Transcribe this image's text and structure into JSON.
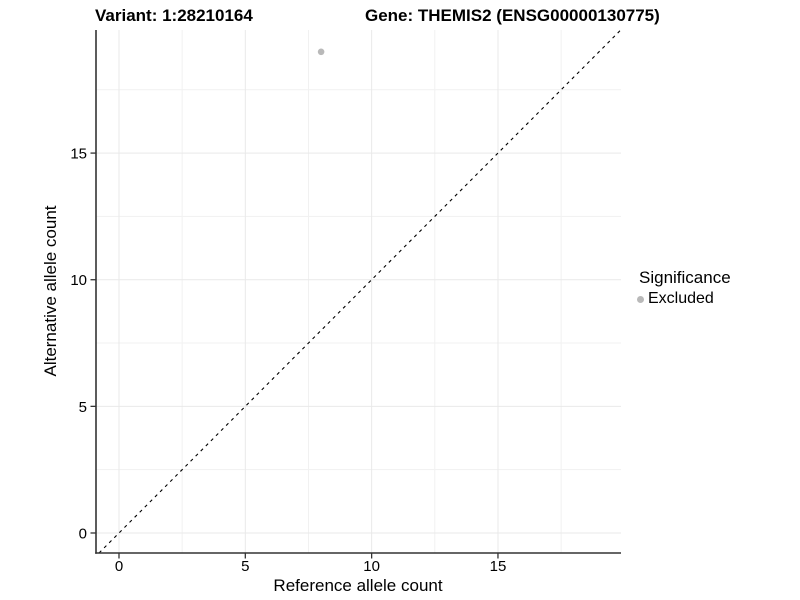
{
  "chart_data": {
    "type": "scatter",
    "title_left": "Variant: 1:28210164",
    "title_right": "Gene: THEMIS2 (ENSG00000130775)",
    "xlabel": "Reference allele count",
    "ylabel": "Alternative allele count",
    "xlim": [
      -0.91,
      19.87
    ],
    "ylim": [
      -0.79,
      19.86
    ],
    "xticks": [
      0,
      5,
      10,
      15
    ],
    "yticks": [
      0,
      5,
      10,
      15
    ],
    "xticks_minor": [
      2.5,
      7.5,
      12.5,
      17.5
    ],
    "yticks_minor": [
      2.5,
      7.5,
      12.5,
      17.5
    ],
    "grid": "major+minor",
    "identity_line": {
      "style": "dashed",
      "slope": 1,
      "intercept": 0,
      "color": "#000000"
    },
    "series": [
      {
        "name": "Excluded",
        "color": "#b9b9b9",
        "points": [
          {
            "x": 8,
            "y": 19
          }
        ]
      }
    ],
    "legend": {
      "title": "Significance",
      "position": "right",
      "entries": [
        {
          "label": "Excluded",
          "color": "#b9b9b9"
        }
      ]
    }
  },
  "colors": {
    "background": "#ffffff",
    "grid_major": "#e9e9e9",
    "grid_minor": "#f1f1f1",
    "axis_line": "#333333",
    "tick_mark": "#333333",
    "text": "#000000"
  }
}
